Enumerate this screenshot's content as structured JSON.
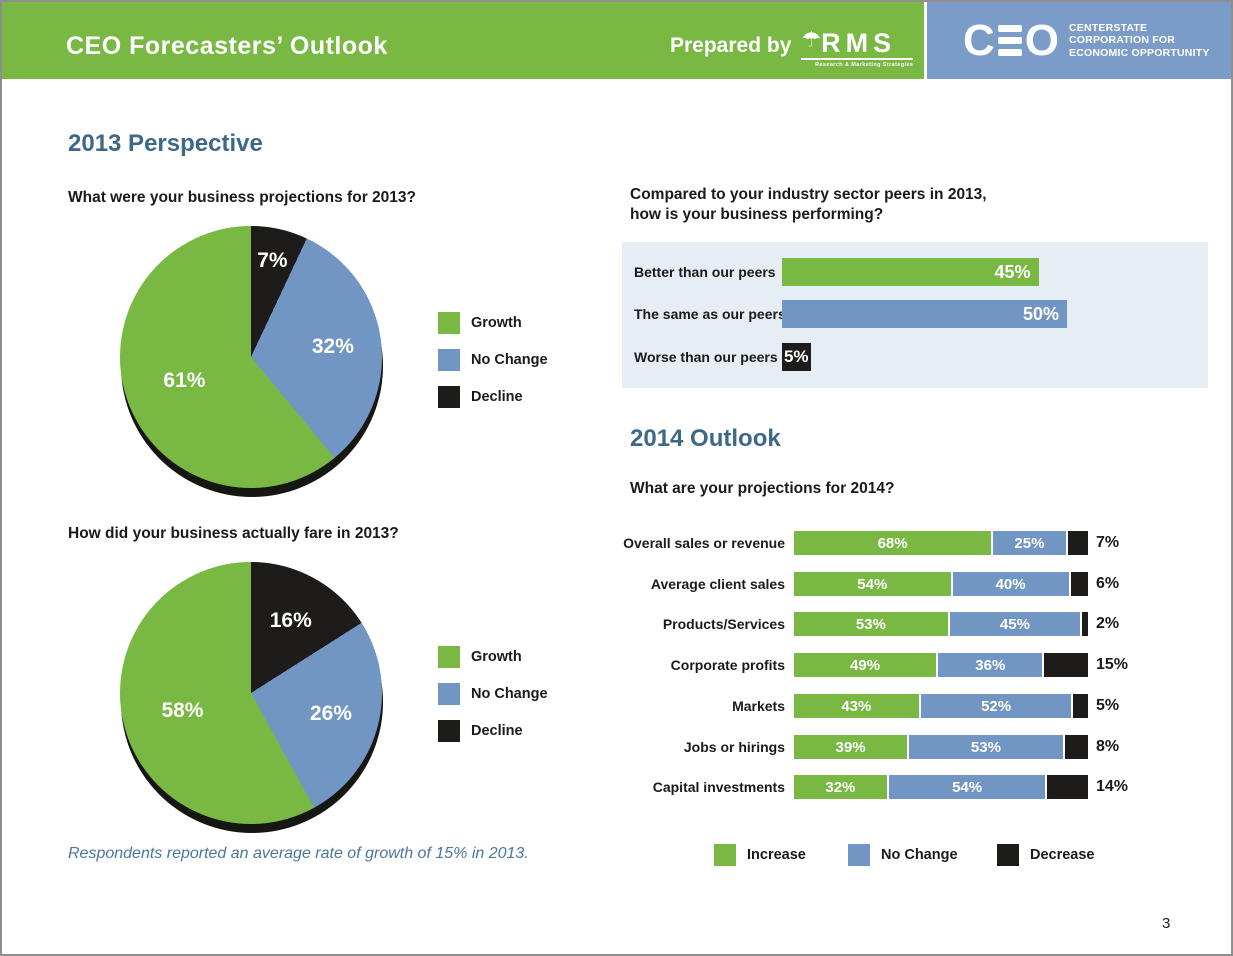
{
  "header": {
    "title": "CEO Forecasters’ Outlook",
    "prepared_by": "Prepared by",
    "rms": {
      "logo_text": "RMS",
      "tagline": "Research & Marketing Strategies",
      "icon": "umbrella-person-icon"
    },
    "ceo": {
      "logo_text": "CEO",
      "org_lines": [
        "CENTERSTATE",
        "CORPORATION FOR",
        "ECONOMIC OPPORTUNITY"
      ]
    }
  },
  "colors": {
    "green": "#78b843",
    "blue": "#7296c4",
    "black": "#1d1c1a",
    "header_green": "#78b843",
    "header_blue": "#7b9cc8",
    "panel_bg": "#e7edf4",
    "heading_blue": "#3d6889",
    "footnote_blue": "#4b759f"
  },
  "sections": {
    "perspective": {
      "heading": "2013 Perspective",
      "question1": "What were your business projections for 2013?",
      "question2": "How did your business actually fare in 2013?",
      "footnote": "Respondents reported an average rate of growth of 15% in 2013."
    },
    "peers": {
      "question_line1": "Compared to your industry sector peers in 2013,",
      "question_line2": "how is your business performing?"
    },
    "outlook": {
      "heading": "2014 Outlook",
      "question": "What are your projections for 2014?"
    }
  },
  "pie_legend": [
    {
      "label": "Growth",
      "color": "#78b843"
    },
    {
      "label": "No Change",
      "color": "#7296c4"
    },
    {
      "label": "Decline",
      "color": "#1d1c1a"
    }
  ],
  "bar_legend": [
    {
      "label": "Increase",
      "color": "#78b843"
    },
    {
      "label": "No Change",
      "color": "#7296c4"
    },
    {
      "label": "Decrease",
      "color": "#1d1c1a"
    }
  ],
  "page_number": "3",
  "chart_data": [
    {
      "id": "pie-projections-2013",
      "type": "pie",
      "title": "What were your business projections for 2013?",
      "start_angle_deg": 0,
      "direction": "clockwise",
      "slices": [
        {
          "name": "Decline",
          "value": 7,
          "color": "#1d1c1a",
          "label": "7%"
        },
        {
          "name": "No Change",
          "value": 32,
          "color": "#7296c4",
          "label": "32%"
        },
        {
          "name": "Growth",
          "value": 61,
          "color": "#78b843",
          "label": "61%"
        }
      ],
      "legend": [
        "Growth",
        "No Change",
        "Decline"
      ]
    },
    {
      "id": "pie-actual-2013",
      "type": "pie",
      "title": "How did your business actually fare in 2013?",
      "start_angle_deg": 0,
      "direction": "clockwise",
      "slices": [
        {
          "name": "Decline",
          "value": 16,
          "color": "#1d1c1a",
          "label": "16%"
        },
        {
          "name": "No Change",
          "value": 26,
          "color": "#7296c4",
          "label": "26%"
        },
        {
          "name": "Growth",
          "value": 58,
          "color": "#78b843",
          "label": "58%"
        }
      ],
      "legend": [
        "Growth",
        "No Change",
        "Decline"
      ]
    },
    {
      "id": "bar-peers-2013",
      "type": "bar",
      "title": "Compared to your industry sector peers in 2013, how is your business performing?",
      "orientation": "horizontal",
      "categories": [
        "Better than our peers",
        "The same as our peers",
        "Worse than our peers"
      ],
      "values": [
        45,
        50,
        5
      ],
      "value_labels": [
        "45%",
        "50%",
        "5%"
      ],
      "bar_colors": [
        "#78b843",
        "#7296c4",
        "#1d1c1a"
      ],
      "xlim": [
        0,
        100
      ]
    },
    {
      "id": "stacked-projections-2014",
      "type": "bar",
      "subtype": "stacked-horizontal",
      "title": "What are your projections for 2014?",
      "categories": [
        "Overall sales or revenue",
        "Average client sales",
        "Products/Services",
        "Corporate profits",
        "Markets",
        "Jobs or hirings",
        "Capital investments"
      ],
      "series": [
        {
          "name": "Increase",
          "color": "#78b843",
          "values": [
            68,
            54,
            53,
            49,
            43,
            39,
            32
          ]
        },
        {
          "name": "No Change",
          "color": "#7296c4",
          "values": [
            25,
            40,
            45,
            36,
            52,
            53,
            54
          ]
        },
        {
          "name": "Decrease",
          "color": "#1d1c1a",
          "values": [
            7,
            6,
            2,
            15,
            5,
            8,
            14
          ]
        }
      ],
      "decrease_outside_labels": [
        "7%",
        "6%",
        "2%",
        "15%",
        "5%",
        "8%",
        "14%"
      ],
      "xlim": [
        0,
        100
      ],
      "legend_position": "bottom"
    }
  ]
}
